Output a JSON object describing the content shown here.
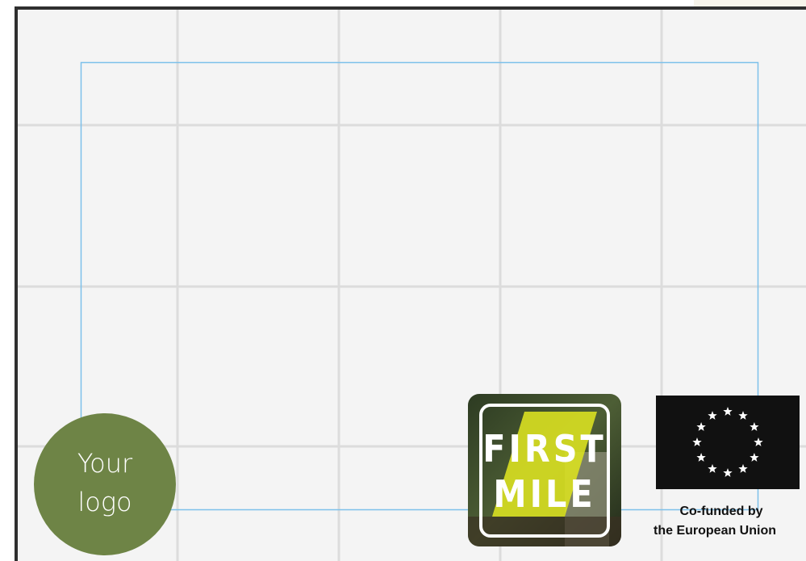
{
  "logo_placeholder": {
    "lines": [
      "Your",
      "logo"
    ]
  },
  "partner_logo": {
    "lines": [
      "FIRST",
      "MILE"
    ]
  },
  "eu_logo": {
    "caption": [
      "Co-funded by",
      "the European Union"
    ]
  }
}
